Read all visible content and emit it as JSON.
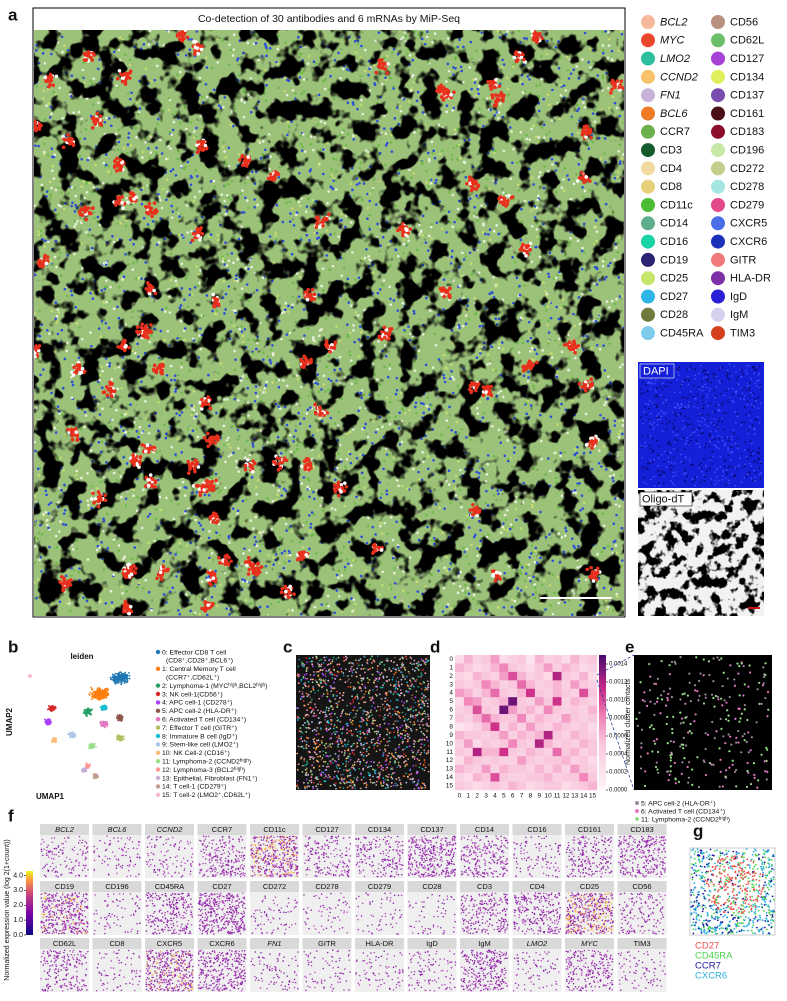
{
  "panel_labels": [
    "a",
    "b",
    "c",
    "d",
    "e",
    "f",
    "g"
  ],
  "panel_a": {
    "title": "Co-detection of 30 antibodies and 6 mRNAs by MiP-Seq",
    "legend": [
      {
        "name": "BCL2",
        "color": "#f4b99a",
        "italic": true
      },
      {
        "name": "MYC",
        "color": "#e8472a",
        "italic": true
      },
      {
        "name": "LMO2",
        "color": "#2dbf9b",
        "italic": true
      },
      {
        "name": "CCND2",
        "color": "#f9c26b",
        "italic": true
      },
      {
        "name": "FN1",
        "color": "#c7b3d8",
        "italic": true
      },
      {
        "name": "BCL6",
        "color": "#ef7b25",
        "italic": true
      },
      {
        "name": "CCR7",
        "color": "#6db04e",
        "italic": false
      },
      {
        "name": "CD3",
        "color": "#155a2a",
        "italic": false
      },
      {
        "name": "CD4",
        "color": "#f2d9a0",
        "italic": false
      },
      {
        "name": "CD8",
        "color": "#e7d07a",
        "italic": false
      },
      {
        "name": "CD11c",
        "color": "#4dbb34",
        "italic": false
      },
      {
        "name": "CD14",
        "color": "#5fae8b",
        "italic": false
      },
      {
        "name": "CD16",
        "color": "#18d3a4",
        "italic": false
      },
      {
        "name": "CD19",
        "color": "#2a2371",
        "italic": false
      },
      {
        "name": "CD25",
        "color": "#c6e66c",
        "italic": false
      },
      {
        "name": "CD27",
        "color": "#2eb5e6",
        "italic": false
      },
      {
        "name": "CD28",
        "color": "#6f7a3a",
        "italic": false
      },
      {
        "name": "CD45RA",
        "color": "#7fcbee",
        "italic": false
      },
      {
        "name": "CD56",
        "color": "#b99080",
        "italic": false
      },
      {
        "name": "CD62L",
        "color": "#6bbf6a",
        "italic": false
      },
      {
        "name": "CD127",
        "color": "#a642d6",
        "italic": false
      },
      {
        "name": "CD134",
        "color": "#e0ee5b",
        "italic": false
      },
      {
        "name": "CD137",
        "color": "#7a4cb0",
        "italic": false
      },
      {
        "name": "CD161",
        "color": "#4a0f16",
        "italic": false
      },
      {
        "name": "CD183",
        "color": "#8b0f2c",
        "italic": false
      },
      {
        "name": "CD196",
        "color": "#c8e8a8",
        "italic": false
      },
      {
        "name": "CD272",
        "color": "#c4cd8a",
        "italic": false
      },
      {
        "name": "CD278",
        "color": "#a6e6e0",
        "italic": false
      },
      {
        "name": "CD279",
        "color": "#e34a8b",
        "italic": false
      },
      {
        "name": "CXCR5",
        "color": "#4a6de8",
        "italic": false
      },
      {
        "name": "CXCR6",
        "color": "#1930b8",
        "italic": false
      },
      {
        "name": "GITR",
        "color": "#f07a7a",
        "italic": false
      },
      {
        "name": "HLA-DR",
        "color": "#7d2fa6",
        "italic": false
      },
      {
        "name": "IgD",
        "color": "#2a1ed6",
        "italic": false
      },
      {
        "name": "IgM",
        "color": "#d6d0ee",
        "italic": false
      },
      {
        "name": "TIM3",
        "color": "#d4401c",
        "italic": false
      }
    ],
    "insets": [
      "DAPI",
      "Oligo-dT"
    ]
  },
  "panel_b": {
    "title": "leiden",
    "x_label": "UMAP1",
    "y_label": "UMAP2",
    "clusters": [
      {
        "lines": [
          "0: Effector  CD8 T cell",
          "(CD8⁺,CD28⁺,BCL6⁺)"
        ],
        "color": "#1f77b4"
      },
      {
        "lines": [
          "1: Central Memory T cell",
          "(CCR7⁺,CD62L⁺)"
        ],
        "color": "#ff7f0e"
      },
      {
        "lines": [
          "2: Lymphoma-1 (MYCʰⁱᵍʰ,BCL2ʰⁱᵍʰ)"
        ],
        "color": "#279e68"
      },
      {
        "lines": [
          "3: NK cell-1(CD56⁺)"
        ],
        "color": "#d62728"
      },
      {
        "lines": [
          "4: APC cell-1 (CD278⁺)"
        ],
        "color": "#aa40fc"
      },
      {
        "lines": [
          "5: APC cell-2 (HLA-DR⁺)"
        ],
        "color": "#8c564b"
      },
      {
        "lines": [
          "6: Activated T cell (CD134⁺)"
        ],
        "color": "#e377c2"
      },
      {
        "lines": [
          "7: Effector  T cell (GITR⁺)"
        ],
        "color": "#b5bd61"
      },
      {
        "lines": [
          "8: Immature B cell (IgD⁺)"
        ],
        "color": "#17becf"
      },
      {
        "lines": [
          "9: Stem-like cell (LMO2⁺)"
        ],
        "color": "#aec7e8"
      },
      {
        "lines": [
          "10: NK Cell-2 (CD16⁺)"
        ],
        "color": "#ffbb78"
      },
      {
        "lines": [
          "11: Lymphoma-2 (CCND2ʰⁱᵍʰ)"
        ],
        "color": "#98df8a"
      },
      {
        "lines": [
          "12: Lymphoma-3 (BCL2ʰⁱᵍʰ)"
        ],
        "color": "#ff9896"
      },
      {
        "lines": [
          "13: Epithelial, Fibroblast (FN1⁺)"
        ],
        "color": "#c5b0d5"
      },
      {
        "lines": [
          "14: T cell-1 (CD279⁺)"
        ],
        "color": "#c49c94"
      },
      {
        "lines": [
          "15: T cell-2 (LMO2⁺,CD62L⁺)"
        ],
        "color": "#f7b6d2"
      }
    ]
  },
  "panel_d": {
    "categories": [
      "0",
      "1",
      "2",
      "3",
      "4",
      "5",
      "6",
      "7",
      "8",
      "9",
      "10",
      "11",
      "12",
      "13",
      "14",
      "15"
    ],
    "values": [
      [
        0.0003,
        0.0006,
        0.0004,
        0.0005,
        0.0007,
        0.0003,
        0.0004,
        0.0005,
        0.0002,
        0.0006,
        0.0004,
        0.0005,
        0.0003,
        0.0006,
        0.0004,
        0.0005
      ],
      [
        0.0006,
        0.0005,
        0.0003,
        0.0004,
        0.0006,
        0.0008,
        0.0005,
        0.0004,
        0.0003,
        0.0005,
        0.0007,
        0.0004,
        0.0006,
        0.0005,
        0.0003,
        0.0004
      ],
      [
        0.0004,
        0.0003,
        0.0006,
        0.0005,
        0.0004,
        0.0007,
        0.001,
        0.0006,
        0.0004,
        0.0005,
        0.0003,
        0.0012,
        0.0005,
        0.0004,
        0.0006,
        0.0003
      ],
      [
        0.0005,
        0.0004,
        0.0005,
        0.0008,
        0.0006,
        0.0004,
        0.0005,
        0.0009,
        0.0006,
        0.0004,
        0.0005,
        0.0006,
        0.0004,
        0.0007,
        0.0005,
        0.0004
      ],
      [
        0.0007,
        0.0006,
        0.0004,
        0.0006,
        0.0009,
        0.0005,
        0.0004,
        0.0006,
        0.0011,
        0.0005,
        0.0004,
        0.0006,
        0.0005,
        0.0004,
        0.001,
        0.0005
      ],
      [
        0.0003,
        0.0008,
        0.0007,
        0.0004,
        0.0005,
        0.0006,
        0.0014,
        0.0005,
        0.0004,
        0.0007,
        0.0005,
        0.0011,
        0.0004,
        0.0006,
        0.0005,
        0.0004
      ],
      [
        0.0004,
        0.0005,
        0.001,
        0.0005,
        0.0004,
        0.0014,
        0.0007,
        0.0005,
        0.0006,
        0.0004,
        0.0008,
        0.0005,
        0.0004,
        0.0005,
        0.0004,
        0.0006
      ],
      [
        0.0005,
        0.0004,
        0.0006,
        0.0009,
        0.0006,
        0.0005,
        0.0005,
        0.0008,
        0.0004,
        0.0006,
        0.0005,
        0.0004,
        0.0007,
        0.0005,
        0.0004,
        0.0005
      ],
      [
        0.0002,
        0.0003,
        0.0004,
        0.0006,
        0.0011,
        0.0004,
        0.0006,
        0.0004,
        0.0007,
        0.0005,
        0.0004,
        0.0006,
        0.0005,
        0.0004,
        0.0005,
        0.0003
      ],
      [
        0.0006,
        0.0005,
        0.0005,
        0.0004,
        0.0005,
        0.0007,
        0.0004,
        0.0006,
        0.0005,
        0.0006,
        0.0012,
        0.0005,
        0.0004,
        0.0006,
        0.0005,
        0.0004
      ],
      [
        0.0004,
        0.0007,
        0.0003,
        0.0005,
        0.0004,
        0.0005,
        0.0008,
        0.0005,
        0.0004,
        0.0012,
        0.0006,
        0.0004,
        0.0005,
        0.0004,
        0.0006,
        0.0005
      ],
      [
        0.0005,
        0.0004,
        0.0012,
        0.0006,
        0.0006,
        0.0011,
        0.0005,
        0.0004,
        0.0006,
        0.0005,
        0.0004,
        0.0009,
        0.0005,
        0.0006,
        0.0004,
        0.0005
      ],
      [
        0.0003,
        0.0006,
        0.0005,
        0.0004,
        0.0005,
        0.0004,
        0.0004,
        0.0007,
        0.0005,
        0.0004,
        0.0005,
        0.0005,
        0.0006,
        0.0004,
        0.0005,
        0.0003
      ],
      [
        0.0006,
        0.0005,
        0.0004,
        0.0007,
        0.0004,
        0.0006,
        0.0005,
        0.0005,
        0.0004,
        0.0006,
        0.0004,
        0.0006,
        0.0004,
        0.0007,
        0.0005,
        0.0004
      ],
      [
        0.0004,
        0.0003,
        0.0006,
        0.0005,
        0.001,
        0.0005,
        0.0004,
        0.0004,
        0.0005,
        0.0005,
        0.0006,
        0.0004,
        0.0005,
        0.0005,
        0.0008,
        0.0005
      ],
      [
        0.0005,
        0.0004,
        0.0003,
        0.0004,
        0.0005,
        0.0004,
        0.0006,
        0.0005,
        0.0003,
        0.0004,
        0.0005,
        0.0005,
        0.0003,
        0.0004,
        0.0005,
        0.0006
      ]
    ],
    "colorbar": {
      "label": "Normalized cluster contacts",
      "lim": [
        0,
        0.0015
      ],
      "ticks": [
        {
          "value": 0,
          "label": "0.0000"
        },
        {
          "value": 0.0002,
          "label": "0.0002"
        },
        {
          "value": 0.0004,
          "label": "0.0004"
        },
        {
          "value": 0.0006,
          "label": "0.0006"
        },
        {
          "value": 0.0008,
          "label": "0.0008"
        },
        {
          "value": 0.001,
          "label": "0.0010"
        },
        {
          "value": 0.0012,
          "label": "0.0012"
        },
        {
          "value": 0.0014,
          "label": "0.0014"
        }
      ]
    }
  },
  "panel_e": {
    "legend": [
      {
        "label": "5: APC cell-2 (HLA-DR⁺)",
        "color": "#9a8a9a"
      },
      {
        "label": "6: Activated T cell (CD134⁺)",
        "color": "#e377c2"
      },
      {
        "label": "11: Lymphoma-2 (CCND2ʰⁱᵍʰ)",
        "color": "#98df8a"
      }
    ]
  },
  "panel_f": {
    "colorbar": {
      "label": "Normalized expression value (log 2(1+count))",
      "lim": [
        0,
        4.3
      ],
      "ticks": [
        {
          "value": 4,
          "label": "4.0"
        },
        {
          "value": 3,
          "label": "3.0"
        },
        {
          "value": 2,
          "label": "2.0"
        },
        {
          "value": 1,
          "label": "1.0"
        },
        {
          "value": 0,
          "label": "0.0"
        }
      ]
    },
    "tiles": [
      {
        "name": "BCL2",
        "italic": true
      },
      {
        "name": "BCL6",
        "italic": true
      },
      {
        "name": "CCND2",
        "italic": true
      },
      {
        "name": "CCR7",
        "italic": false
      },
      {
        "name": "CD11c",
        "italic": false
      },
      {
        "name": "CD127",
        "italic": false
      },
      {
        "name": "CD134",
        "italic": false
      },
      {
        "name": "CD137",
        "italic": false
      },
      {
        "name": "CD14",
        "italic": false
      },
      {
        "name": "CD16",
        "italic": false
      },
      {
        "name": "CD161",
        "italic": false
      },
      {
        "name": "CD183",
        "italic": false
      },
      {
        "name": "CD19",
        "italic": false
      },
      {
        "name": "CD196",
        "italic": false
      },
      {
        "name": "CD45RA",
        "italic": false
      },
      {
        "name": "CD27",
        "italic": false
      },
      {
        "name": "CD272",
        "italic": false
      },
      {
        "name": "CD278",
        "italic": false
      },
      {
        "name": "CD279",
        "italic": false
      },
      {
        "name": "CD28",
        "italic": false
      },
      {
        "name": "CD3",
        "italic": false
      },
      {
        "name": "CD4",
        "italic": false
      },
      {
        "name": "CD25",
        "italic": false
      },
      {
        "name": "CD56",
        "italic": false
      },
      {
        "name": "CD62L",
        "italic": false
      },
      {
        "name": "CD8",
        "italic": false
      },
      {
        "name": "CXCR5",
        "italic": false
      },
      {
        "name": "CXCR6",
        "italic": false
      },
      {
        "name": "FN1",
        "italic": true
      },
      {
        "name": "GITR",
        "italic": false
      },
      {
        "name": "HLA-DR",
        "italic": false
      },
      {
        "name": "IgD",
        "italic": false
      },
      {
        "name": "IgM",
        "italic": false
      },
      {
        "name": "LMO2",
        "italic": true
      },
      {
        "name": "MYC",
        "italic": true
      },
      {
        "name": "TIM3",
        "italic": false
      }
    ]
  },
  "panel_g": {
    "legend": [
      {
        "name": "CD27",
        "color": "#f0504a"
      },
      {
        "name": "CD45RA",
        "color": "#4cd44c"
      },
      {
        "name": "CCR7",
        "color": "#1a1aa0"
      },
      {
        "name": "CXCR6",
        "color": "#2ab0e0"
      }
    ]
  }
}
